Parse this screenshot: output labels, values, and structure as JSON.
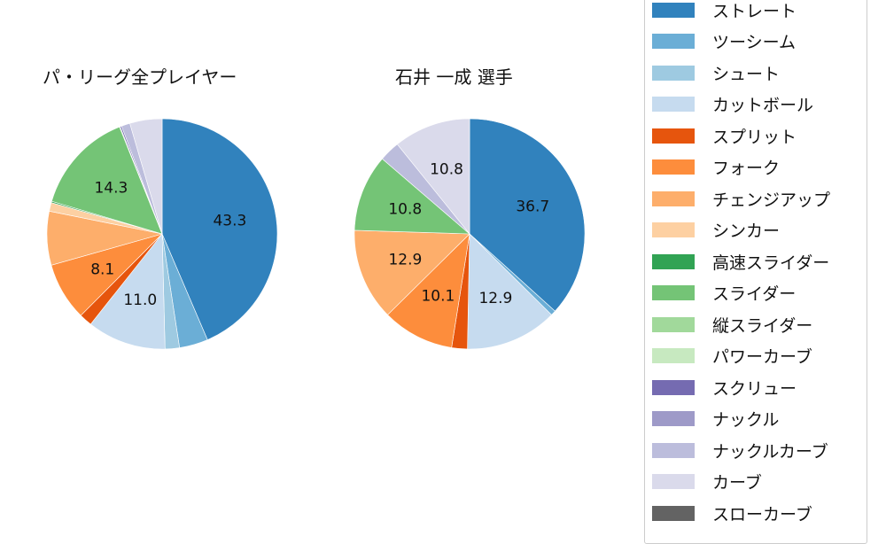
{
  "chart_data": [
    {
      "type": "pie",
      "title": "パ・リーグ全プレイヤー",
      "categories": [
        "ストレート",
        "ツーシーム",
        "シュート",
        "カットボール",
        "スプリット",
        "フォーク",
        "チェンジアップ",
        "シンカー",
        "高速スライダー",
        "スライダー",
        "縦スライダー",
        "パワーカーブ",
        "スクリュー",
        "ナックル",
        "ナックルカーブ",
        "カーブ",
        "スローカーブ"
      ],
      "values": [
        43.3,
        4.0,
        2.0,
        11.0,
        1.8,
        8.1,
        7.5,
        1.2,
        0.2,
        14.3,
        0.1,
        0.0,
        0.2,
        0.0,
        1.2,
        4.5,
        0.0
      ],
      "labels_shown": [
        "43.3",
        "11.0",
        "8.1",
        "14.3"
      ],
      "startangle": 90,
      "direction": "clockwise"
    },
    {
      "type": "pie",
      "title": "石井 一成  選手",
      "categories": [
        "ストレート",
        "ツーシーム",
        "シュート",
        "カットボール",
        "スプリット",
        "フォーク",
        "チェンジアップ",
        "シンカー",
        "高速スライダー",
        "スライダー",
        "縦スライダー",
        "パワーカーブ",
        "スクリュー",
        "ナックル",
        "ナックルカーブ",
        "カーブ",
        "スローカーブ"
      ],
      "values": [
        36.7,
        0.7,
        0.0,
        12.9,
        2.2,
        10.1,
        12.9,
        0.0,
        0.0,
        10.8,
        0.0,
        0.0,
        0.0,
        0.0,
        2.9,
        10.8,
        0.0
      ],
      "labels_shown": [
        "36.7",
        "12.9",
        "10.1",
        "12.9",
        "10.8",
        "10.8"
      ],
      "startangle": 90,
      "direction": "clockwise"
    }
  ],
  "legend": {
    "items": [
      {
        "label": "ストレート",
        "color": "#3182bd"
      },
      {
        "label": "ツーシーム",
        "color": "#6baed6"
      },
      {
        "label": "シュート",
        "color": "#9ecae1"
      },
      {
        "label": "カットボール",
        "color": "#c6dbef"
      },
      {
        "label": "スプリット",
        "color": "#e6550d"
      },
      {
        "label": "フォーク",
        "color": "#fd8d3c"
      },
      {
        "label": "チェンジアップ",
        "color": "#fdae6b"
      },
      {
        "label": "シンカー",
        "color": "#fdd0a2"
      },
      {
        "label": "高速スライダー",
        "color": "#31a354"
      },
      {
        "label": "スライダー",
        "color": "#74c476"
      },
      {
        "label": "縦スライダー",
        "color": "#a1d99b"
      },
      {
        "label": "パワーカーブ",
        "color": "#c7e9c0"
      },
      {
        "label": "スクリュー",
        "color": "#756bb1"
      },
      {
        "label": "ナックル",
        "color": "#9e9ac8"
      },
      {
        "label": "ナックルカーブ",
        "color": "#bcbddc"
      },
      {
        "label": "カーブ",
        "color": "#dadaeb"
      },
      {
        "label": "スローカーブ",
        "color": "#636363"
      }
    ]
  },
  "titles": {
    "left": "パ・リーグ全プレイヤー",
    "right": "石井 一成  選手"
  }
}
